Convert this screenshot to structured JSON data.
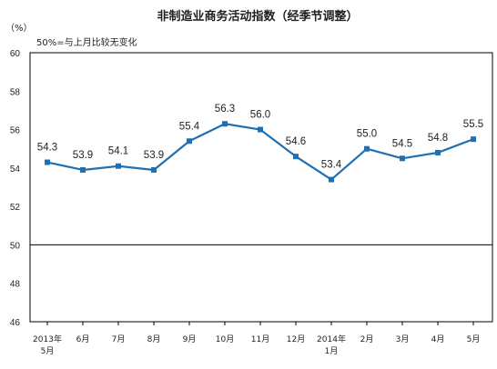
{
  "chart_data": {
    "type": "line",
    "title": "非制造业商务活动指数（经季节调整）",
    "ylabel": "（%）",
    "note": "50%=与上月比较无变化",
    "ylim": [
      46,
      60
    ],
    "yticks": [
      46,
      48,
      50,
      52,
      54,
      56,
      58,
      60
    ],
    "ytick_labels": [
      "46",
      "48",
      "50",
      "52",
      "54",
      "56",
      "58",
      "60"
    ],
    "reference_line": 50,
    "categories": [
      [
        "2013年",
        "5月"
      ],
      [
        "6月"
      ],
      [
        "7月"
      ],
      [
        "8月"
      ],
      [
        "9月"
      ],
      [
        "10月"
      ],
      [
        "11月"
      ],
      [
        "12月"
      ],
      [
        "2014年",
        "1月"
      ],
      [
        "2月"
      ],
      [
        "3月"
      ],
      [
        "4月"
      ],
      [
        "5月"
      ]
    ],
    "series": [
      {
        "values": [
          54.3,
          53.9,
          54.1,
          53.9,
          55.4,
          56.3,
          56.0,
          54.6,
          53.4,
          55.0,
          54.5,
          54.8,
          55.5
        ],
        "labels": [
          "54.3",
          "53.9",
          "54.1",
          "53.9",
          "55.4",
          "56.3",
          "56.0",
          "54.6",
          "53.4",
          "55.0",
          "54.5",
          "54.8",
          "55.5"
        ],
        "color": "#1f6fb4"
      }
    ],
    "grid": false
  }
}
